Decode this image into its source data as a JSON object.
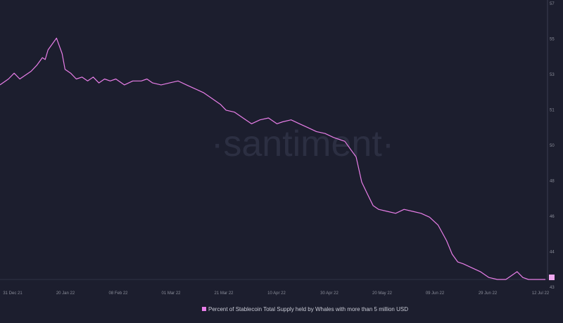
{
  "chart_data": {
    "type": "line",
    "watermark": "·santiment·",
    "x_ticks": [
      "31 Dec 21",
      "20 Jan 22",
      "08 Feb 22",
      "01 Mar 22",
      "21 Mar 22",
      "10 Apr 22",
      "30 Apr 22",
      "20 May 22",
      "09 Jun 22",
      "29 Jun 22",
      "12 Jul 22"
    ],
    "y_ticks": [
      "57",
      "55",
      "53",
      "51",
      "50",
      "48",
      "46",
      "44",
      "43"
    ],
    "ylim": [
      43,
      57
    ],
    "series": [
      {
        "name": "Percent of Stablecoin Total Supply held by Whales with more than 5 million USD",
        "color": "#e87ee8",
        "x": [
          "2021-12-31",
          "2022-01-03",
          "2022-01-05",
          "2022-01-07",
          "2022-01-09",
          "2022-01-11",
          "2022-01-13",
          "2022-01-15",
          "2022-01-16",
          "2022-01-17",
          "2022-01-19",
          "2022-01-20",
          "2022-01-21",
          "2022-01-22",
          "2022-01-23",
          "2022-01-25",
          "2022-01-27",
          "2022-01-29",
          "2022-01-31",
          "2022-02-02",
          "2022-02-04",
          "2022-02-06",
          "2022-02-08",
          "2022-02-10",
          "2022-02-13",
          "2022-02-16",
          "2022-02-19",
          "2022-02-21",
          "2022-02-23",
          "2022-02-26",
          "2022-03-01",
          "2022-03-04",
          "2022-03-07",
          "2022-03-10",
          "2022-03-13",
          "2022-03-16",
          "2022-03-19",
          "2022-03-21",
          "2022-03-24",
          "2022-03-27",
          "2022-03-30",
          "2022-04-02",
          "2022-04-05",
          "2022-04-08",
          "2022-04-10",
          "2022-04-13",
          "2022-04-16",
          "2022-04-19",
          "2022-04-22",
          "2022-04-25",
          "2022-04-28",
          "2022-04-30",
          "2022-05-02",
          "2022-05-04",
          "2022-05-06",
          "2022-05-08",
          "2022-05-10",
          "2022-05-12",
          "2022-05-14",
          "2022-05-17",
          "2022-05-20",
          "2022-05-23",
          "2022-05-26",
          "2022-05-29",
          "2022-06-01",
          "2022-06-04",
          "2022-06-07",
          "2022-06-09",
          "2022-06-11",
          "2022-06-13",
          "2022-06-16",
          "2022-06-19",
          "2022-06-22",
          "2022-06-25",
          "2022-06-28",
          "2022-06-30",
          "2022-07-02",
          "2022-07-04",
          "2022-07-06",
          "2022-07-08",
          "2022-07-10",
          "2022-07-12"
        ],
        "y": [
          53.0,
          53.3,
          53.6,
          53.3,
          53.5,
          53.7,
          54.0,
          54.4,
          54.3,
          54.8,
          55.2,
          55.4,
          55.0,
          54.6,
          53.8,
          53.6,
          53.3,
          53.4,
          53.2,
          53.4,
          53.1,
          53.3,
          53.2,
          53.3,
          53.0,
          53.2,
          53.2,
          53.3,
          53.1,
          53.0,
          53.1,
          53.2,
          53.0,
          52.8,
          52.6,
          52.3,
          52.0,
          51.7,
          51.6,
          51.3,
          51.0,
          51.2,
          51.3,
          51.0,
          51.1,
          51.2,
          51.0,
          50.8,
          50.6,
          50.5,
          50.3,
          50.2,
          50.1,
          49.7,
          49.3,
          48.0,
          47.4,
          46.8,
          46.6,
          46.5,
          46.4,
          46.6,
          46.5,
          46.4,
          46.2,
          45.8,
          45.0,
          44.3,
          43.9,
          43.8,
          43.6,
          43.4,
          43.1,
          43.0,
          43.0,
          43.2,
          43.4,
          43.1,
          43.0,
          43.0,
          43.0,
          43.0
        ]
      }
    ]
  }
}
